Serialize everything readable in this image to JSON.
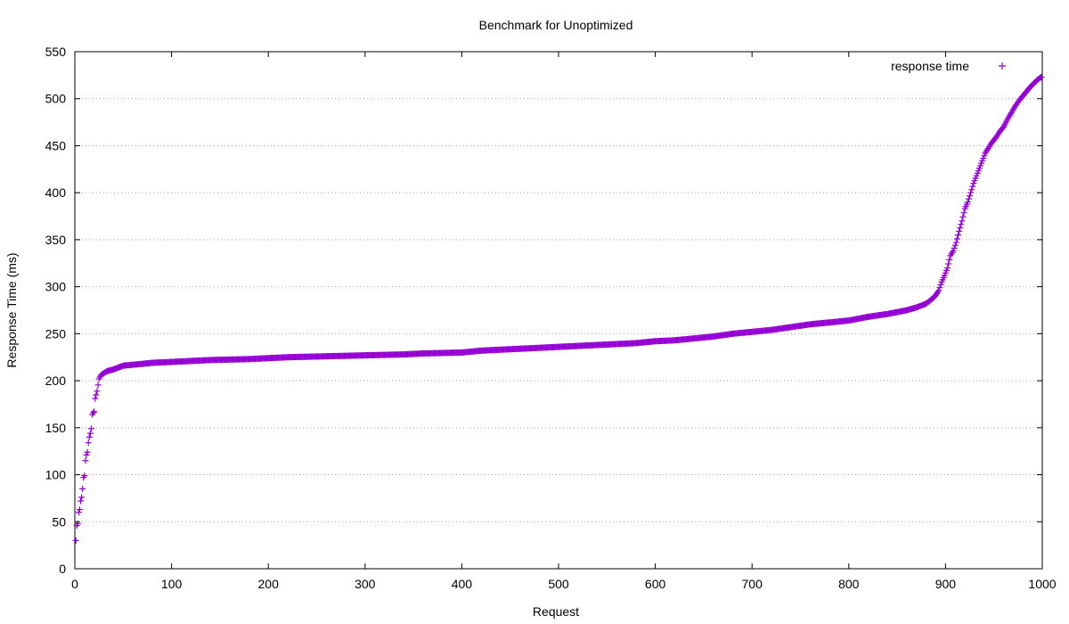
{
  "chart_data": {
    "type": "scatter",
    "title": "Benchmark for Unoptimized",
    "xlabel": "Request",
    "ylabel": "Response Time (ms)",
    "xlim": [
      0,
      1000
    ],
    "ylim": [
      0,
      550
    ],
    "xticks": [
      0,
      100,
      200,
      300,
      400,
      500,
      600,
      700,
      800,
      900,
      1000
    ],
    "yticks": [
      0,
      50,
      100,
      150,
      200,
      250,
      300,
      350,
      400,
      450,
      500,
      550
    ],
    "grid": true,
    "legend_position": "top-right",
    "marker": "plus",
    "series": [
      {
        "name": "response time",
        "color": "#9400d3",
        "points": [
          [
            1,
            30
          ],
          [
            2,
            46
          ],
          [
            3,
            48
          ],
          [
            4,
            60
          ],
          [
            5,
            63
          ],
          [
            6,
            72
          ],
          [
            7,
            76
          ],
          [
            8,
            85
          ],
          [
            9,
            97
          ],
          [
            10,
            99
          ],
          [
            11,
            115
          ],
          [
            12,
            121
          ],
          [
            13,
            124
          ],
          [
            14,
            134
          ],
          [
            15,
            140
          ],
          [
            16,
            144
          ],
          [
            17,
            149
          ],
          [
            18,
            164
          ],
          [
            19,
            166
          ],
          [
            20,
            167
          ],
          [
            21,
            181
          ],
          [
            22,
            185
          ],
          [
            23,
            189
          ],
          [
            25,
            202
          ],
          [
            27,
            206
          ],
          [
            30,
            208
          ],
          [
            33,
            210
          ],
          [
            36,
            211
          ],
          [
            40,
            212
          ],
          [
            45,
            214
          ],
          [
            50,
            216
          ],
          [
            60,
            217
          ],
          [
            70,
            218
          ],
          [
            80,
            219
          ],
          [
            90,
            219.5
          ],
          [
            100,
            220
          ],
          [
            120,
            221
          ],
          [
            140,
            222
          ],
          [
            160,
            222.5
          ],
          [
            180,
            223
          ],
          [
            200,
            224
          ],
          [
            220,
            225
          ],
          [
            240,
            225.5
          ],
          [
            260,
            226
          ],
          [
            280,
            226.5
          ],
          [
            300,
            227
          ],
          [
            320,
            227.5
          ],
          [
            340,
            228
          ],
          [
            360,
            229
          ],
          [
            380,
            229.5
          ],
          [
            400,
            230
          ],
          [
            420,
            232
          ],
          [
            440,
            233
          ],
          [
            460,
            234
          ],
          [
            480,
            235
          ],
          [
            500,
            236
          ],
          [
            520,
            237
          ],
          [
            540,
            238
          ],
          [
            560,
            239
          ],
          [
            580,
            240
          ],
          [
            600,
            242
          ],
          [
            620,
            243
          ],
          [
            640,
            245
          ],
          [
            660,
            247
          ],
          [
            680,
            250
          ],
          [
            700,
            252
          ],
          [
            720,
            254
          ],
          [
            740,
            257
          ],
          [
            760,
            260
          ],
          [
            780,
            262
          ],
          [
            800,
            264
          ],
          [
            820,
            268
          ],
          [
            840,
            271
          ],
          [
            860,
            275
          ],
          [
            870,
            278
          ],
          [
            880,
            282
          ],
          [
            885,
            286
          ],
          [
            890,
            291
          ],
          [
            893,
            296
          ],
          [
            896,
            305
          ],
          [
            899,
            312
          ],
          [
            902,
            320
          ],
          [
            905,
            333
          ],
          [
            908,
            338
          ],
          [
            911,
            347
          ],
          [
            914,
            359
          ],
          [
            917,
            370
          ],
          [
            920,
            383
          ],
          [
            923,
            390
          ],
          [
            926,
            400
          ],
          [
            929,
            410
          ],
          [
            932,
            418
          ],
          [
            935,
            426
          ],
          [
            938,
            434
          ],
          [
            941,
            442
          ],
          [
            944,
            447
          ],
          [
            947,
            452
          ],
          [
            950,
            456
          ],
          [
            953,
            460
          ],
          [
            956,
            465
          ],
          [
            960,
            470
          ],
          [
            964,
            478
          ],
          [
            968,
            485
          ],
          [
            972,
            492
          ],
          [
            976,
            498
          ],
          [
            980,
            503
          ],
          [
            984,
            508
          ],
          [
            988,
            513
          ],
          [
            992,
            517
          ],
          [
            996,
            521
          ],
          [
            999,
            523
          ]
        ]
      }
    ]
  }
}
